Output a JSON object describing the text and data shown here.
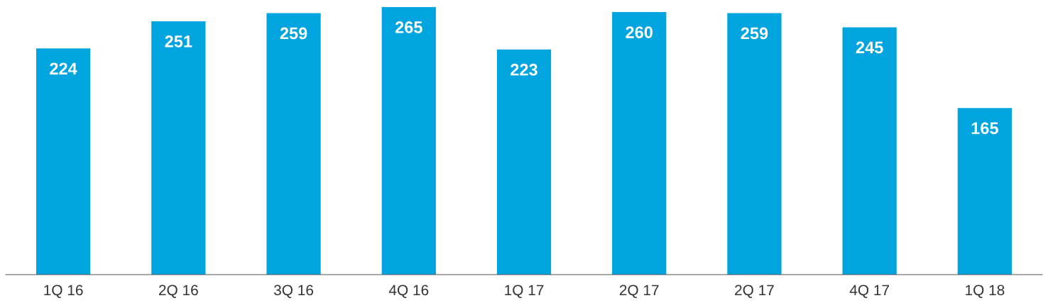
{
  "chart_data": {
    "type": "bar",
    "categories": [
      "1Q 16",
      "2Q 16",
      "3Q 16",
      "4Q 16",
      "1Q 17",
      "2Q 17",
      "2Q 17",
      "4Q 17",
      "1Q 18"
    ],
    "values": [
      224,
      251,
      259,
      265,
      223,
      260,
      259,
      245,
      165
    ],
    "color": "#00a5df",
    "data_labels": true,
    "grid": false,
    "legend": false,
    "tick_labels": "x"
  }
}
